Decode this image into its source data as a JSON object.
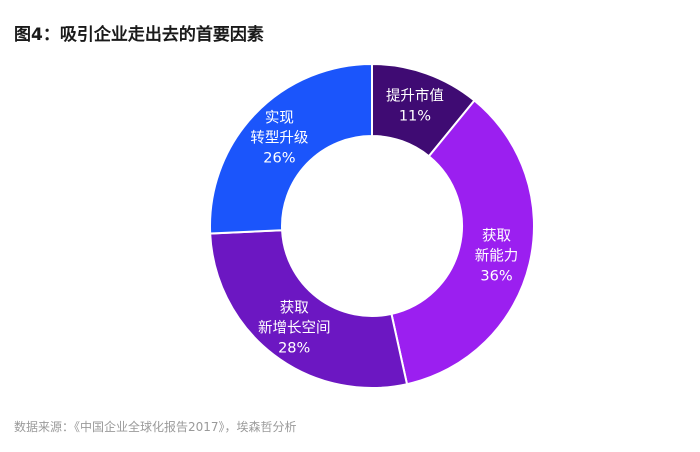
{
  "title": "图4：吸引企业走出去的首要因素",
  "source": "数据来源：《中国企业全球化报告2017》，埃森哲分析",
  "chart_data": {
    "type": "pie",
    "title": "图4：吸引企业走出去的首要因素",
    "donut": true,
    "slices": [
      {
        "label": "提升市值",
        "lines": [
          "提升市值"
        ],
        "value": 11,
        "value_label": "11%",
        "color": "#3f0b73"
      },
      {
        "label": "获取新能力",
        "lines": [
          "获取",
          "新能力"
        ],
        "value": 36,
        "value_label": "36%",
        "color": "#9b1ff0"
      },
      {
        "label": "获取新增长空间",
        "lines": [
          "获取",
          "新增长空间"
        ],
        "value": 28,
        "value_label": "28%",
        "color": "#6c17c2"
      },
      {
        "label": "实现转型升级",
        "lines": [
          "实现",
          "转型升级"
        ],
        "value": 26,
        "value_label": "26%",
        "color": "#1b55fb"
      }
    ],
    "start_angle_deg": 0,
    "direction": "clockwise"
  }
}
